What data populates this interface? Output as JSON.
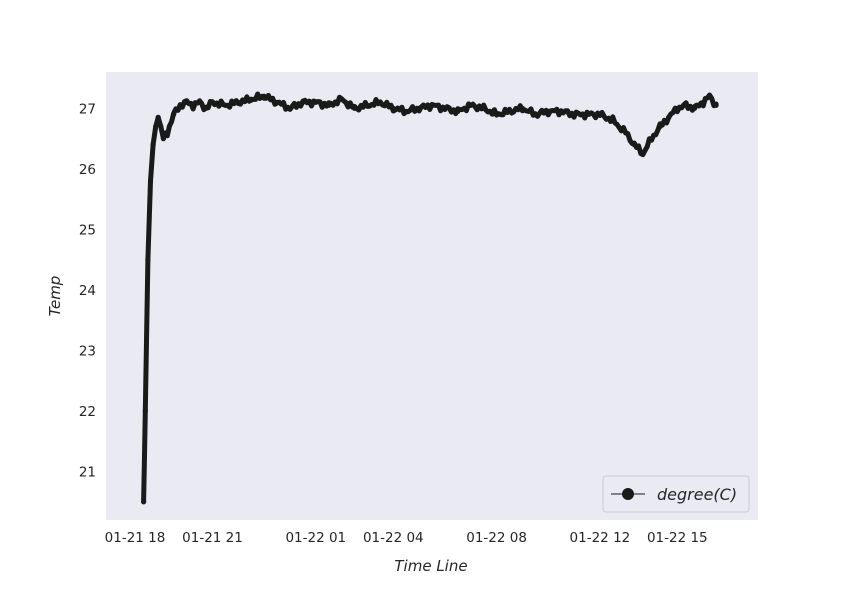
{
  "chart_data": {
    "type": "line",
    "title": "",
    "xlabel": "Time Line",
    "ylabel": "Temp",
    "x_ticks": [
      {
        "label": "01-21 18",
        "hour": 18
      },
      {
        "label": "01-21 21",
        "hour": 21
      },
      {
        "label": "01-22 01",
        "hour": 25
      },
      {
        "label": "01-22 04",
        "hour": 28
      },
      {
        "label": "01-22 08",
        "hour": 32
      },
      {
        "label": "01-22 12",
        "hour": 36
      },
      {
        "label": "01-22 15",
        "hour": 39
      }
    ],
    "y_ticks": [
      21,
      22,
      23,
      24,
      25,
      26,
      27
    ],
    "xlim": [
      "01-21 18:00",
      "01-22 17:00"
    ],
    "ylim": [
      20.2,
      27.6
    ],
    "grid": false,
    "legend": {
      "position": "bottom-right",
      "marker": "circle"
    },
    "series": [
      {
        "name": "degree(C)",
        "color": "#1a1a1a",
        "x": [
          "01-21 18:20",
          "01-21 18:24",
          "01-21 18:30",
          "01-21 18:36",
          "01-21 18:42",
          "01-21 18:48",
          "01-21 18:54",
          "01-21 19:00",
          "01-21 19:06",
          "01-21 19:15",
          "01-21 19:30",
          "01-21 19:45",
          "01-21 20:00",
          "01-21 20:15",
          "01-21 20:30",
          "01-21 20:45",
          "01-21 21:00",
          "01-21 21:30",
          "01-21 22:00",
          "01-21 22:30",
          "01-21 23:00",
          "01-21 23:30",
          "01-22 00:00",
          "01-22 00:30",
          "01-22 01:00",
          "01-22 01:30",
          "01-22 02:00",
          "01-22 02:30",
          "01-22 03:00",
          "01-22 03:30",
          "01-22 04:00",
          "01-22 04:30",
          "01-22 05:00",
          "01-22 05:30",
          "01-22 06:00",
          "01-22 06:30",
          "01-22 07:00",
          "01-22 07:30",
          "01-22 08:00",
          "01-22 08:30",
          "01-22 09:00",
          "01-22 09:30",
          "01-22 10:00",
          "01-22 10:30",
          "01-22 11:00",
          "01-22 11:30",
          "01-22 12:00",
          "01-22 12:30",
          "01-22 13:00",
          "01-22 13:20",
          "01-22 13:40",
          "01-22 14:00",
          "01-22 14:20",
          "01-22 14:40",
          "01-22 15:00",
          "01-22 15:20",
          "01-22 15:40",
          "01-22 16:00",
          "01-22 16:15",
          "01-22 16:30"
        ],
        "y": [
          20.5,
          22.0,
          24.5,
          25.8,
          26.4,
          26.7,
          26.85,
          26.7,
          26.5,
          26.6,
          26.9,
          27.05,
          27.1,
          27.05,
          27.1,
          27.0,
          27.1,
          27.05,
          27.1,
          27.15,
          27.2,
          27.1,
          27.0,
          27.1,
          27.1,
          27.05,
          27.15,
          27.0,
          27.05,
          27.1,
          27.0,
          26.95,
          27.0,
          27.05,
          27.0,
          26.95,
          27.05,
          27.0,
          26.9,
          26.95,
          27.0,
          26.9,
          26.95,
          26.95,
          26.9,
          26.9,
          26.9,
          26.8,
          26.6,
          26.4,
          26.25,
          26.5,
          26.7,
          26.85,
          27.0,
          27.05,
          27.0,
          27.1,
          27.2,
          27.05
        ]
      }
    ]
  }
}
